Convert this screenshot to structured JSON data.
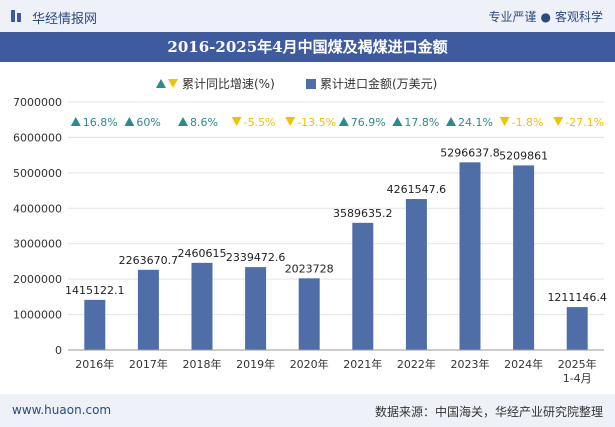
{
  "header": {
    "brand": "华经情报网",
    "tagline_left": "专业严谨",
    "tagline_right": "客观科学"
  },
  "title": "2016-2025年4月中国煤及褐煤进口金额",
  "footer": {
    "url": "www.huaon.com",
    "source": "数据来源：中国海关，华经产业研究院整理"
  },
  "colors": {
    "bar": "#4f6ea8",
    "growth_up": "#2b8a8a",
    "growth_down": "#f2c200",
    "header_bg": "#3e5ba0"
  },
  "chart_data": {
    "type": "bar",
    "categories": [
      "2016年",
      "2017年",
      "2018年",
      "2019年",
      "2020年",
      "2021年",
      "2022年",
      "2023年",
      "2024年",
      "2025年\n1-4月"
    ],
    "series": [
      {
        "name": "累计进口金额(万美元)",
        "values": [
          1415122.1,
          2263670.7,
          2460615,
          2339472.6,
          2023728,
          3589635.2,
          4261547.6,
          5296637.8,
          5209861,
          1211146.4
        ],
        "labels": [
          "1415122.1",
          "2263670.7",
          "2460615",
          "2339472.6",
          "2023728",
          "3589635.2",
          "4261547.6",
          "5296637.8",
          "5209861",
          "1211146.4"
        ]
      },
      {
        "name": "累计同比增速(%)",
        "values": [
          16.8,
          60,
          8.6,
          -5.5,
          -13.5,
          76.9,
          17.8,
          24.1,
          -1.8,
          -27.1
        ],
        "labels": [
          "16.8%",
          "60%",
          "8.6%",
          "-5.5%",
          "-13.5%",
          "76.9%",
          "17.8%",
          "24.1%",
          "-1.8%",
          "-27.1%"
        ]
      }
    ],
    "y_ticks": [
      "0",
      "1000000",
      "2000000",
      "3000000",
      "4000000",
      "5000000",
      "6000000",
      "7000000"
    ],
    "ylim": [
      0,
      7000000
    ],
    "legend_position": "top-center"
  }
}
